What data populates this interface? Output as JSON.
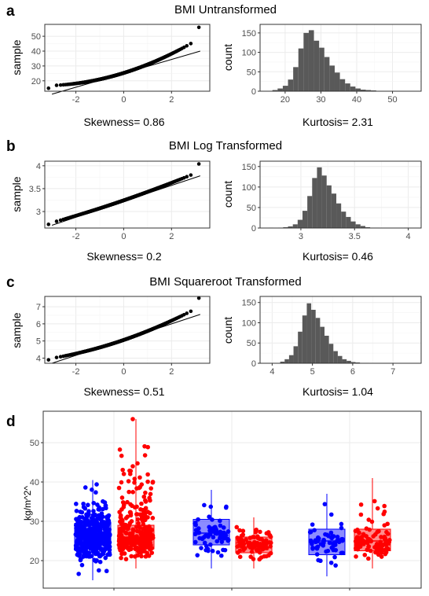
{
  "chart_data": [
    {
      "panel": "a",
      "title": "BMI Untransformed",
      "charts": [
        {
          "type": "scatter",
          "kind": "qq",
          "xlabel": "",
          "ylabel": "sample",
          "xlim": [
            -3.3,
            3.6
          ],
          "ylim": [
            13,
            58
          ],
          "xticks": [
            -2,
            0,
            2
          ],
          "yticks": [
            20,
            30,
            40,
            50
          ],
          "stat_label": "Skewness= 0.86",
          "mean": 26,
          "sd": 5,
          "skew": 0.86,
          "max_point": 56,
          "min_point": 15,
          "ref_line": {
            "x0": -3.0,
            "y0": 11.0,
            "x1": 3.2,
            "y1": 40.0
          }
        },
        {
          "type": "bar",
          "kind": "histogram",
          "xlabel": "",
          "ylabel": "count",
          "xlim": [
            13,
            58
          ],
          "ylim": [
            0,
            172
          ],
          "xticks": [
            20,
            30,
            40,
            50
          ],
          "yticks": [
            0,
            50,
            100,
            150
          ],
          "stat_label": "Kurtosis= 2.31",
          "bin_start": 15,
          "bin_width": 1.45,
          "counts": [
            1,
            3,
            7,
            14,
            30,
            62,
            110,
            150,
            157,
            130,
            112,
            88,
            66,
            48,
            31,
            20,
            12,
            7,
            4,
            3,
            2,
            1,
            1,
            1
          ]
        }
      ]
    },
    {
      "panel": "b",
      "title": "BMI Log Transformed",
      "charts": [
        {
          "type": "scatter",
          "kind": "qq",
          "xlabel": "",
          "ylabel": "sample",
          "xlim": [
            -3.3,
            3.6
          ],
          "ylim": [
            2.64,
            4.1
          ],
          "xticks": [
            -2,
            0,
            2
          ],
          "yticks": [
            3.0,
            3.5,
            4.0
          ],
          "stat_label": "Skewness= 0.2",
          "mean": 3.25,
          "sd": 0.18,
          "skew": 0.2,
          "max_point": 4.04,
          "min_point": 2.72,
          "ref_line": {
            "x0": -3.0,
            "y0": 2.7,
            "x1": 3.2,
            "y1": 3.78
          }
        },
        {
          "type": "bar",
          "kind": "histogram",
          "xlabel": "",
          "ylabel": "count",
          "xlim": [
            2.62,
            4.12
          ],
          "ylim": [
            0,
            163
          ],
          "xticks": [
            3.0,
            3.5,
            4.0
          ],
          "yticks": [
            0,
            50,
            100,
            150
          ],
          "stat_label": "Kurtosis= 0.46",
          "bin_start": 2.7,
          "bin_width": 0.045,
          "counts": [
            1,
            0,
            1,
            2,
            4,
            9,
            20,
            42,
            78,
            122,
            148,
            128,
            104,
            84,
            60,
            40,
            27,
            16,
            9,
            5,
            2,
            1,
            1,
            0,
            0,
            0,
            0,
            0,
            1
          ]
        }
      ]
    },
    {
      "panel": "c",
      "title": "BMI Squareroot Transformed",
      "charts": [
        {
          "type": "scatter",
          "kind": "qq",
          "xlabel": "",
          "ylabel": "sample",
          "xlim": [
            -3.3,
            3.6
          ],
          "ylim": [
            3.7,
            7.6
          ],
          "xticks": [
            -2,
            0,
            2
          ],
          "yticks": [
            4,
            5,
            6,
            7
          ],
          "stat_label": "Skewness= 0.51",
          "mean": 5.1,
          "sd": 0.48,
          "skew": 0.51,
          "max_point": 7.5,
          "min_point": 3.9,
          "ref_line": {
            "x0": -3.0,
            "y0": 3.7,
            "x1": 3.2,
            "y1": 6.55
          }
        },
        {
          "type": "bar",
          "kind": "histogram",
          "xlabel": "",
          "ylabel": "count",
          "xlim": [
            3.7,
            7.7
          ],
          "ylim": [
            0,
            165
          ],
          "xticks": [
            4,
            5,
            6,
            7
          ],
          "yticks": [
            0,
            50,
            100,
            150
          ],
          "stat_label": "Kurtosis= 1.04",
          "bin_start": 4.2,
          "bin_width": 0.11,
          "counts": [
            4,
            10,
            20,
            42,
            78,
            118,
            148,
            132,
            112,
            90,
            68,
            48,
            30,
            18,
            10,
            6,
            3,
            2,
            1,
            1
          ]
        }
      ]
    },
    {
      "panel": "d",
      "type": "scatter",
      "kind": "boxplot",
      "xlabel": "",
      "ylabel": "kg/m^2^",
      "ylim": [
        13,
        58
      ],
      "yticks": [
        20,
        30,
        40,
        50
      ],
      "colors": {
        "blue": "#0000ff",
        "red": "#ff0000"
      },
      "groups": [
        {
          "color": "blue",
          "n": 420,
          "min": 15,
          "q1": 23,
          "median": 26.5,
          "q3": 29.5,
          "max": 40.5,
          "seed": 11
        },
        {
          "color": "red",
          "n": 300,
          "min": 18,
          "q1": 23,
          "median": 26,
          "q3": 29,
          "max": 56,
          "outliers": [
            44,
            56
          ],
          "seed": 23
        },
        {
          "color": "blue",
          "n": 75,
          "min": 18,
          "q1": 24,
          "median": 27,
          "q3": 30.5,
          "max": 38,
          "seed": 37
        },
        {
          "color": "red",
          "n": 90,
          "min": 18,
          "q1": 22,
          "median": 24.5,
          "q3": 26,
          "max": 31,
          "seed": 41
        },
        {
          "color": "blue",
          "n": 60,
          "min": 16,
          "q1": 21.5,
          "median": 25,
          "q3": 28,
          "max": 37,
          "seed": 53
        },
        {
          "color": "red",
          "n": 100,
          "min": 18,
          "q1": 22.5,
          "median": 25,
          "q3": 28,
          "max": 41,
          "seed": 67
        }
      ]
    }
  ]
}
